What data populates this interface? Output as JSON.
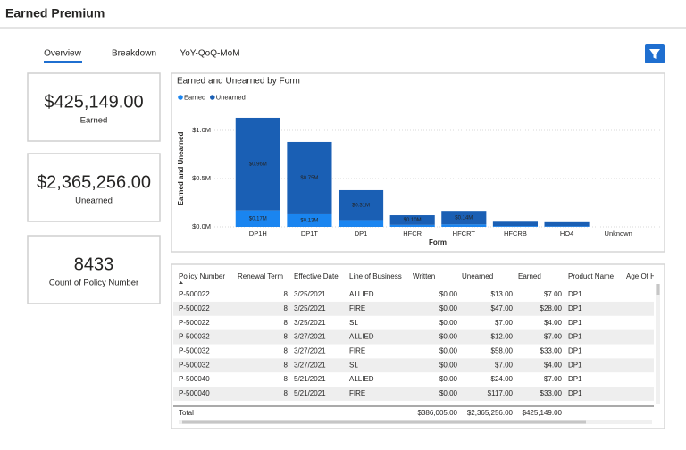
{
  "header": {
    "title": "Earned Premium"
  },
  "tabs": [
    "Overview",
    "Breakdown",
    "YoY-QoQ-MoM"
  ],
  "cards": [
    {
      "value": "$425,149.00",
      "label": "Earned"
    },
    {
      "value": "$2,365,256.00",
      "label": "Unearned"
    },
    {
      "value": "8433",
      "label": "Count of Policy Number"
    }
  ],
  "chart_data": {
    "type": "bar",
    "stacked": true,
    "title": "Earned and Unearned by Form",
    "x_label": "Form",
    "y_label": "Earned and Unearned",
    "categories": [
      "DP1H",
      "DP1T",
      "DP1",
      "HFCR",
      "HFCRT",
      "HFCRB",
      "HO4",
      "Unknown"
    ],
    "series": [
      {
        "name": "Earned",
        "color": "#1a85f0",
        "values": [
          170000,
          130000,
          70000,
          20000,
          25000,
          8000,
          6000,
          0
        ],
        "value_labels": [
          "$0.17M",
          "$0.13M",
          null,
          null,
          null,
          null,
          null,
          null
        ]
      },
      {
        "name": "Unearned",
        "color": "#1a5fb4",
        "values": [
          960000,
          750000,
          310000,
          100000,
          140000,
          45000,
          42000,
          0
        ],
        "value_labels": [
          "$0.96M",
          "$0.75M",
          "$0.31M",
          "$0.10M",
          "$0.14M",
          null,
          null,
          null
        ]
      }
    ],
    "ylim": [
      0,
      1200000
    ],
    "yticks": [
      {
        "value": 0,
        "label": "$0.0M"
      },
      {
        "value": 500000,
        "label": "$0.5M"
      },
      {
        "value": 1000000,
        "label": "$1.0M"
      }
    ],
    "grid": true,
    "legend": "top-left"
  },
  "table": {
    "columns": [
      "Policy Number",
      "Renewal Term",
      "Effective Date",
      "Line of Business",
      "Written",
      "Unearned",
      "Earned",
      "Product Name",
      "Age Of Ho"
    ],
    "rows": [
      [
        "P-500022",
        "8",
        "3/25/2021",
        "ALLIED",
        "$0.00",
        "$13.00",
        "$7.00",
        "DP1"
      ],
      [
        "P-500022",
        "8",
        "3/25/2021",
        "FIRE",
        "$0.00",
        "$47.00",
        "$28.00",
        "DP1"
      ],
      [
        "P-500022",
        "8",
        "3/25/2021",
        "SL",
        "$0.00",
        "$7.00",
        "$4.00",
        "DP1"
      ],
      [
        "P-500032",
        "8",
        "3/27/2021",
        "ALLIED",
        "$0.00",
        "$12.00",
        "$7.00",
        "DP1"
      ],
      [
        "P-500032",
        "8",
        "3/27/2021",
        "FIRE",
        "$0.00",
        "$58.00",
        "$33.00",
        "DP1"
      ],
      [
        "P-500032",
        "8",
        "3/27/2021",
        "SL",
        "$0.00",
        "$7.00",
        "$4.00",
        "DP1"
      ],
      [
        "P-500040",
        "8",
        "5/21/2021",
        "ALLIED",
        "$0.00",
        "$24.00",
        "$7.00",
        "DP1"
      ],
      [
        "P-500040",
        "8",
        "5/21/2021",
        "FIRE",
        "$0.00",
        "$117.00",
        "$33.00",
        "DP1"
      ]
    ],
    "total": {
      "label": "Total",
      "written": "$386,005.00",
      "unearned": "$2,365,256.00",
      "earned": "$425,149.00"
    }
  }
}
